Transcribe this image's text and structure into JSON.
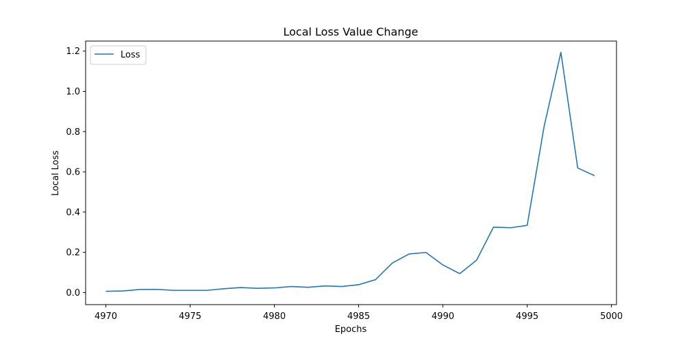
{
  "chart_data": {
    "type": "line",
    "title": "Local Loss Value Change",
    "xlabel": "Epochs",
    "ylabel": "Local Loss",
    "xlim": [
      4968.8,
      5000.3
    ],
    "ylim": [
      -0.06,
      1.25
    ],
    "xticks": [
      4970,
      4975,
      4980,
      4985,
      4990,
      4995,
      5000
    ],
    "yticks": [
      0.0,
      0.2,
      0.4,
      0.6,
      0.8,
      1.0,
      1.2
    ],
    "xtick_labels": [
      "4970",
      "4975",
      "4980",
      "4985",
      "4990",
      "4995",
      "5000"
    ],
    "ytick_labels": [
      "0.0",
      "0.2",
      "0.4",
      "0.6",
      "0.8",
      "1.0",
      "1.2"
    ],
    "grid": false,
    "legend_position": "top-left",
    "series": [
      {
        "name": "Loss",
        "color": "#1f77b4",
        "x": [
          4970,
          4971,
          4972,
          4973,
          4974,
          4975,
          4976,
          4977,
          4978,
          4979,
          4980,
          4981,
          4982,
          4983,
          4984,
          4985,
          4986,
          4987,
          4988,
          4989,
          4990,
          4991,
          4992,
          4993,
          4994,
          4995,
          4996,
          4997,
          4998,
          4999
        ],
        "y": [
          0.006,
          0.008,
          0.015,
          0.016,
          0.011,
          0.011,
          0.011,
          0.019,
          0.025,
          0.021,
          0.023,
          0.03,
          0.026,
          0.033,
          0.03,
          0.039,
          0.064,
          0.147,
          0.192,
          0.199,
          0.137,
          0.094,
          0.161,
          0.325,
          0.322,
          0.334,
          0.824,
          1.194,
          0.619,
          0.581
        ]
      }
    ]
  }
}
